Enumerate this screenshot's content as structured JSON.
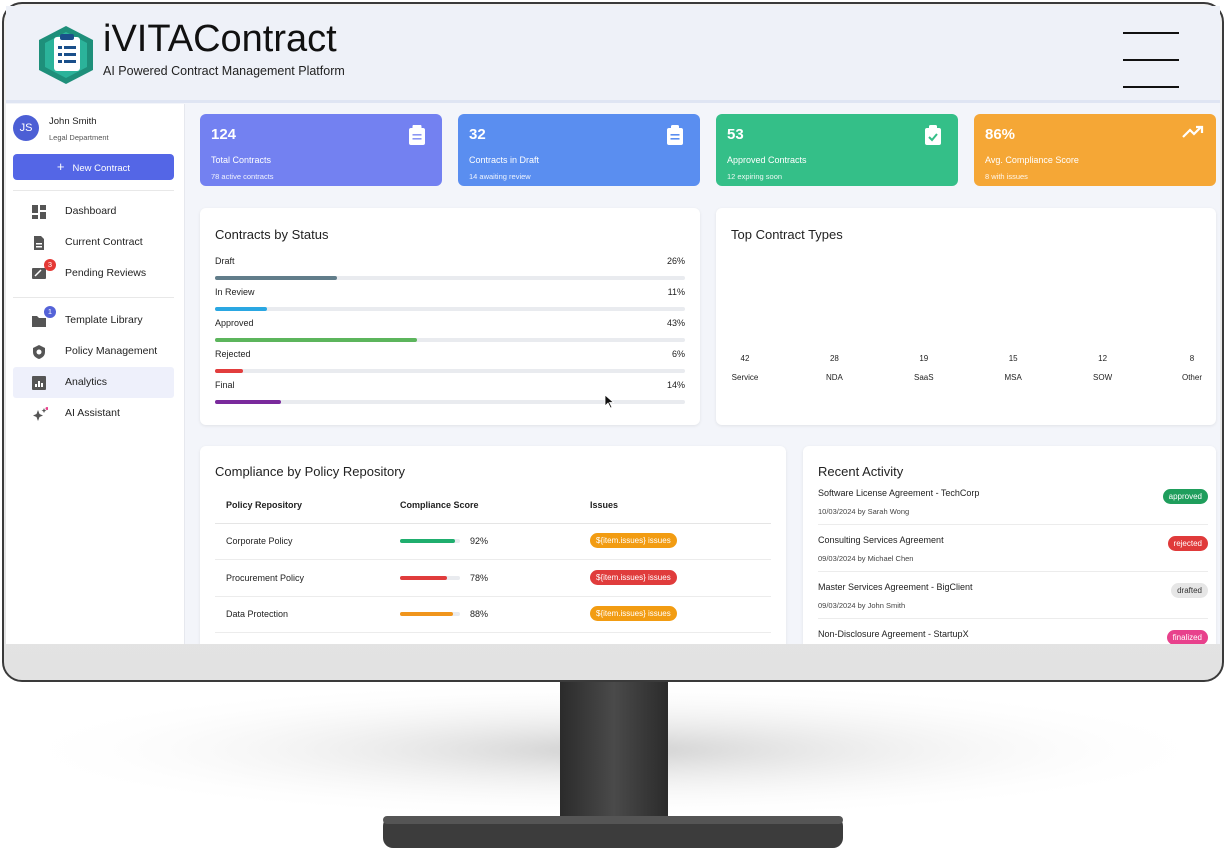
{
  "header": {
    "title": "iVITAContract",
    "subtitle": "AI Powered Contract Management Platform"
  },
  "user": {
    "initials": "JS",
    "name": "John Smith",
    "department": "Legal Department"
  },
  "new_contract_button": "New Contract",
  "nav": [
    {
      "label": "Dashboard"
    },
    {
      "label": "Current Contract"
    },
    {
      "label": "Pending Reviews",
      "badge": 3,
      "badge_color": "#e53935"
    },
    {
      "label": "Template Library",
      "badge": 1,
      "badge_color": "#5563d8"
    },
    {
      "label": "Policy Management"
    },
    {
      "label": "Analytics",
      "active": true
    },
    {
      "label": "AI Assistant"
    }
  ],
  "stats": [
    {
      "value": "124",
      "label": "Total Contracts",
      "note": "78 active contracts",
      "color": "#7381f1"
    },
    {
      "value": "32",
      "label": "Contracts in Draft",
      "note": "14 awaiting review",
      "color": "#5a8ef0"
    },
    {
      "value": "53",
      "label": "Approved Contracts",
      "note": "12 expiring soon",
      "color": "#34bf88"
    },
    {
      "value": "86%",
      "label": "Avg. Compliance Score",
      "note": "8 with issues",
      "color": "#f5a736"
    }
  ],
  "status": {
    "title": "Contracts by Status",
    "items": [
      {
        "label": "Draft",
        "value": 26,
        "value_label": "26%",
        "color": "#617d8a"
      },
      {
        "label": "In Review",
        "value": 11,
        "value_label": "11%",
        "color": "#2aa7e2"
      },
      {
        "label": "Approved",
        "value": 43,
        "value_label": "43%",
        "color": "#5cb55c"
      },
      {
        "label": "Rejected",
        "value": 6,
        "value_label": "6%",
        "color": "#e23d3d"
      },
      {
        "label": "Final",
        "value": 14,
        "value_label": "14%",
        "color": "#7a2a9c"
      }
    ]
  },
  "contract_types": {
    "title": "Top Contract Types",
    "items": [
      {
        "label": "Service",
        "count": 42
      },
      {
        "label": "NDA",
        "count": 28
      },
      {
        "label": "SaaS",
        "count": 19
      },
      {
        "label": "MSA",
        "count": 15
      },
      {
        "label": "SOW",
        "count": 12
      },
      {
        "label": "Other",
        "count": 8
      }
    ]
  },
  "compliance": {
    "title": "Compliance by Policy Repository",
    "columns": [
      "Policy Repository",
      "Compliance Score",
      "Issues"
    ],
    "rows": [
      {
        "policy": "Corporate Policy",
        "score": 92,
        "score_label": "92%",
        "issues": "${item.issues} issues",
        "bar_color": "#1fae6e",
        "pill_color": "#f29c12"
      },
      {
        "policy": "Procurement Policy",
        "score": 78,
        "score_label": "78%",
        "issues": "${item.issues} issues",
        "bar_color": "#e03c3c",
        "pill_color": "#e03c3c"
      },
      {
        "policy": "Data Protection",
        "score": 88,
        "score_label": "88%",
        "issues": "${item.issues} issues",
        "bar_color": "#f0951c",
        "pill_color": "#f29c12"
      }
    ]
  },
  "activity": {
    "title": "Recent Activity",
    "items": [
      {
        "title": "Software License Agreement - TechCorp",
        "meta": "10/03/2024 by Sarah Wong",
        "status": "approved",
        "color": "#1f9e5c"
      },
      {
        "title": "Consulting Services Agreement",
        "meta": "09/03/2024 by Michael Chen",
        "status": "rejected",
        "color": "#e03a3a"
      },
      {
        "title": "Master Services Agreement - BigClient",
        "meta": "09/03/2024 by John Smith",
        "status": "drafted",
        "color": "#e6e6e6"
      },
      {
        "title": "Non-Disclosure Agreement - StartupX",
        "status": "finalized",
        "color": "#e8418c"
      }
    ]
  }
}
